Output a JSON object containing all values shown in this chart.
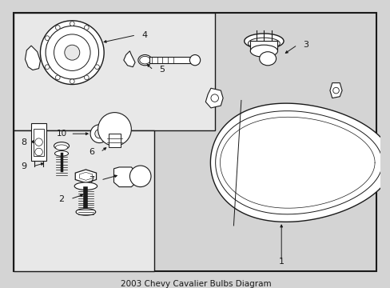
{
  "title": "2003 Chevy Cavalier Bulbs Diagram",
  "bg_color": "#d4d4d4",
  "line_color": "#1a1a1a",
  "white": "#ffffff",
  "lgray": "#e8e8e8",
  "figw": 4.89,
  "figh": 3.6,
  "dpi": 100
}
